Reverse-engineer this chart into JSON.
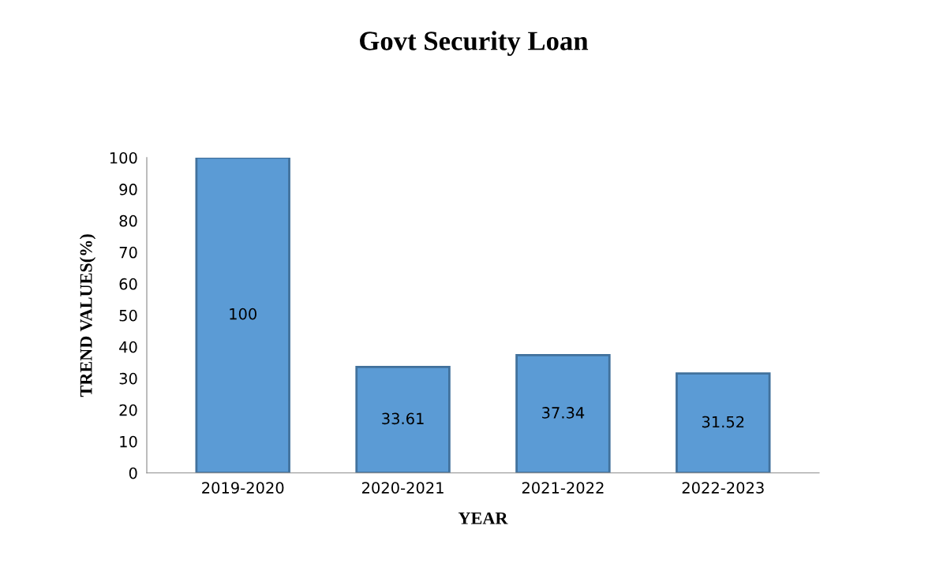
{
  "chart_data": {
    "type": "bar",
    "title": "Govt Security Loan",
    "xlabel": "YEAR",
    "ylabel": "TREND VALUES(%)",
    "categories": [
      "2019-2020",
      "2020-2021",
      "2021-2022",
      "2022-2023"
    ],
    "values": [
      100,
      33.61,
      37.34,
      31.52
    ],
    "color": "#5b9bd5",
    "ylim": [
      0,
      100
    ],
    "yticks": [
      0,
      10,
      20,
      30,
      40,
      50,
      60,
      70,
      80,
      90,
      100
    ],
    "data_labels": true,
    "grid": false,
    "legend": false
  }
}
